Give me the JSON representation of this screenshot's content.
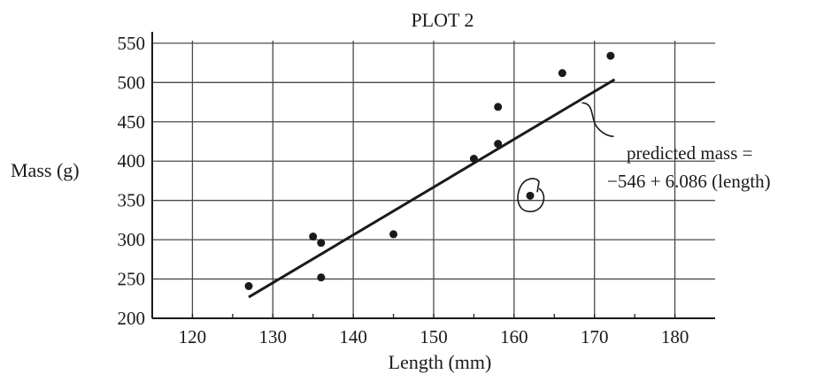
{
  "chart_data": {
    "type": "scatter",
    "title": "PLOT 2",
    "xlabel": "Length (mm)",
    "ylabel": "Mass (g)",
    "xlim": [
      115,
      185
    ],
    "ylim": [
      200,
      560
    ],
    "x_ticks": [
      120,
      130,
      140,
      150,
      160,
      170,
      180
    ],
    "y_ticks": [
      200,
      250,
      300,
      350,
      400,
      450,
      500,
      550
    ],
    "grid": true,
    "series": [
      {
        "points": [
          {
            "x": 127,
            "y": 241
          },
          {
            "x": 135,
            "y": 304
          },
          {
            "x": 136,
            "y": 296
          },
          {
            "x": 136,
            "y": 252
          },
          {
            "x": 145,
            "y": 307
          },
          {
            "x": 155,
            "y": 403
          },
          {
            "x": 158,
            "y": 469
          },
          {
            "x": 158,
            "y": 422
          },
          {
            "x": 162,
            "y": 356
          },
          {
            "x": 166,
            "y": 512
          },
          {
            "x": 172,
            "y": 534
          }
        ]
      }
    ],
    "fit_line": {
      "x_start": 127,
      "x_end": 172.5,
      "intercept": -546,
      "slope": 6.086
    },
    "annotation": {
      "line1": "predicted mass =",
      "line2": "−546 + 6.086 (length)"
    },
    "circled_point": {
      "x": 162,
      "y": 356
    }
  }
}
